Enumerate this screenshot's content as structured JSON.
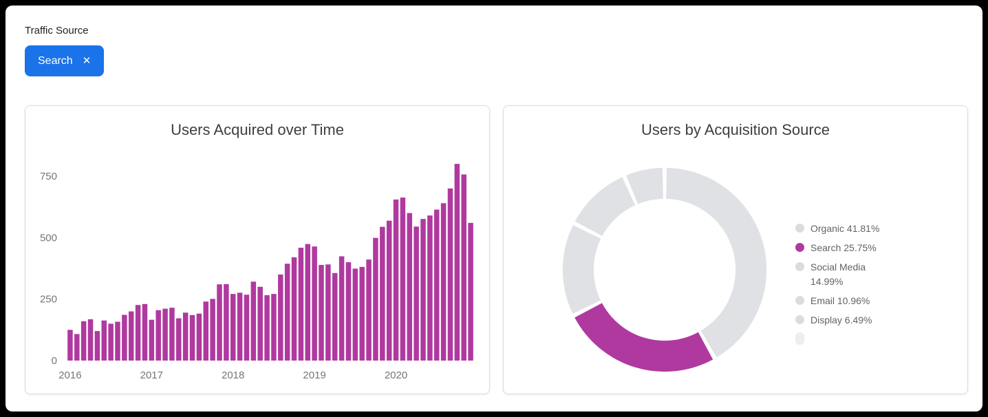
{
  "filter": {
    "label": "Traffic Source",
    "chip": {
      "label": "Search",
      "close_icon": "✕"
    }
  },
  "colors": {
    "accent_blue": "#1a73e8",
    "magenta": "#b0399f",
    "donut_grey": "#dfe1e5",
    "legend_grey_bullet": "#dadce0",
    "legend_text": "#5f6368"
  },
  "chart_data": [
    {
      "type": "bar",
      "title": "Users Acquired over Time",
      "granularity": "monthly",
      "x_tick_labels": [
        "2016",
        "2017",
        "2018",
        "2019",
        "2020"
      ],
      "y_ticks": [
        0,
        250,
        500,
        750
      ],
      "ylim": [
        0,
        840
      ],
      "bar_color": "#b0399f",
      "grid": false,
      "values": [
        125,
        108,
        160,
        168,
        120,
        163,
        150,
        158,
        186,
        200,
        226,
        230,
        166,
        205,
        211,
        215,
        172,
        195,
        185,
        191,
        240,
        251,
        310,
        311,
        271,
        276,
        268,
        321,
        300,
        266,
        271,
        350,
        394,
        420,
        459,
        474,
        464,
        389,
        391,
        356,
        424,
        400,
        374,
        381,
        411,
        499,
        544,
        569,
        655,
        663,
        600,
        545,
        576,
        590,
        614,
        640,
        700,
        800,
        757,
        560
      ]
    },
    {
      "type": "pie",
      "title": "Users by Acquisition Source",
      "donut": true,
      "legend_position": "right",
      "slices": [
        {
          "label": "Organic",
          "value": 41.81,
          "color": "#dfe1e5",
          "bullet": "#dadce0"
        },
        {
          "label": "Search",
          "value": 25.75,
          "color": "#b0399f",
          "bullet": "#b0399f"
        },
        {
          "label": "Social Media",
          "value": 14.99,
          "color": "#dfe1e5",
          "bullet": "#dadce0"
        },
        {
          "label": "Email",
          "value": 10.96,
          "color": "#dfe1e5",
          "bullet": "#dadce0"
        },
        {
          "label": "Display",
          "value": 6.49,
          "color": "#dfe1e5",
          "bullet": "#dadce0"
        }
      ]
    }
  ]
}
